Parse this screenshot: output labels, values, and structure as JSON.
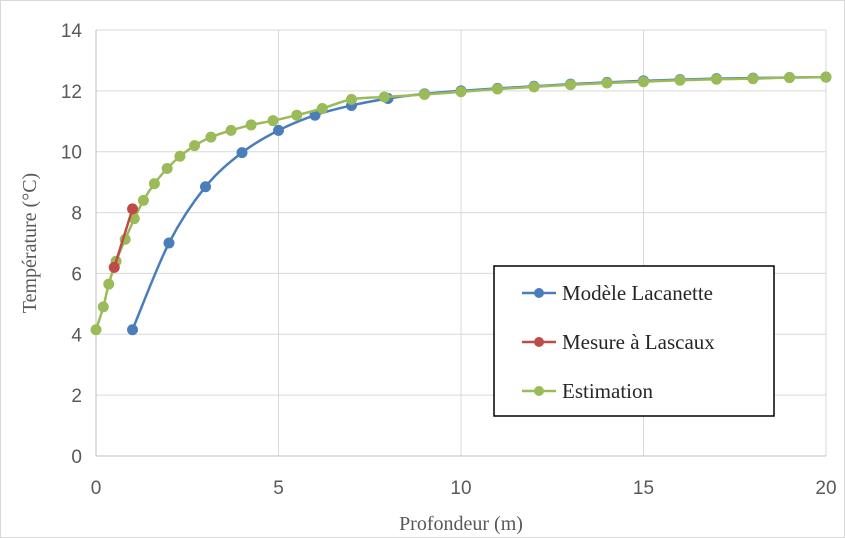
{
  "chart_data": {
    "type": "line",
    "title": "",
    "xlabel": "Profondeur  (m)",
    "ylabel": "Température  (°C)",
    "xlim": [
      0,
      20
    ],
    "ylim": [
      0,
      14
    ],
    "xticks": [
      0,
      5,
      10,
      15,
      20
    ],
    "yticks": [
      0,
      2,
      4,
      6,
      8,
      10,
      12,
      14
    ],
    "xtick_labels": [
      "0",
      "5",
      "10",
      "15",
      "20"
    ],
    "ytick_labels": [
      "0",
      "2",
      "4",
      "6",
      "8",
      "10",
      "12",
      "14"
    ],
    "grid": true,
    "legend_position": "bottom-right",
    "series": [
      {
        "name": "Modèle Lacanette",
        "color": "#4a7ebb",
        "x": [
          1,
          2,
          3,
          4,
          5,
          6,
          7,
          8,
          9,
          10,
          11,
          12,
          13,
          14,
          15,
          16,
          17,
          18,
          19,
          20
        ],
        "y": [
          4.15,
          7.0,
          8.85,
          9.97,
          10.7,
          11.2,
          11.52,
          11.75,
          11.9,
          12.0,
          12.08,
          12.15,
          12.22,
          12.28,
          12.33,
          12.37,
          12.4,
          12.42,
          12.44,
          12.45
        ]
      },
      {
        "name": "Mesure à Lascaux",
        "color": "#be4b48",
        "x": [
          0.5,
          1.0
        ],
        "y": [
          6.2,
          8.12
        ]
      },
      {
        "name": "Estimation",
        "color": "#9bbb59",
        "x": [
          0,
          0.2,
          0.35,
          0.55,
          0.8,
          1.05,
          1.3,
          1.6,
          1.95,
          2.3,
          2.7,
          3.15,
          3.7,
          4.25,
          4.85,
          5.5,
          6.2,
          7.0,
          7.9,
          9.0,
          10.0,
          11.0,
          12.0,
          13.0,
          14.0,
          15.0,
          16.0,
          17.0,
          18.0,
          19.0,
          20.0
        ],
        "y": [
          4.15,
          4.9,
          5.65,
          6.4,
          7.12,
          7.8,
          8.4,
          8.95,
          9.45,
          9.85,
          10.2,
          10.48,
          10.7,
          10.88,
          11.02,
          11.2,
          11.42,
          11.72,
          11.8,
          11.88,
          11.97,
          12.06,
          12.13,
          12.2,
          12.26,
          12.3,
          12.35,
          12.38,
          12.4,
          12.44,
          12.45
        ]
      }
    ]
  }
}
